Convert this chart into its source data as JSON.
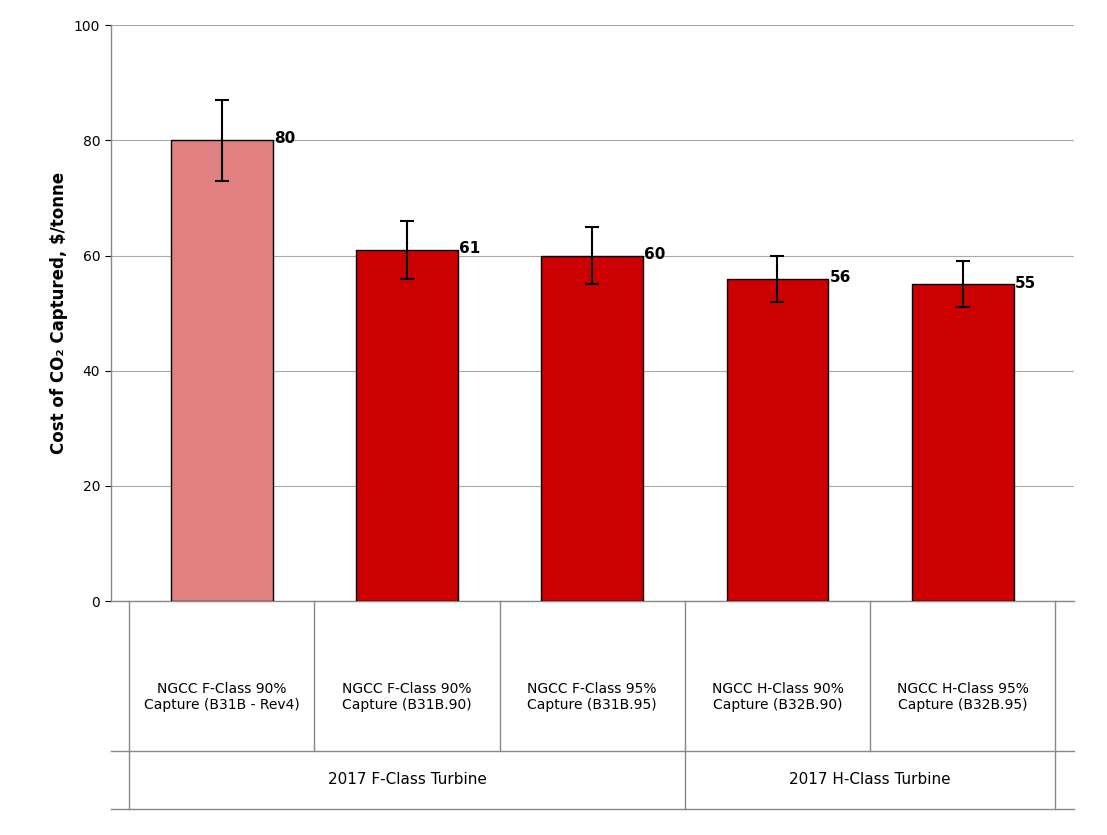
{
  "categories": [
    "NGCC F-Class 90%\nCapture (B31B - Rev4)",
    "NGCC F-Class 90%\nCapture (B31B.90)",
    "NGCC F-Class 95%\nCapture (B31B.95)",
    "NGCC H-Class 90%\nCapture (B32B.90)",
    "NGCC H-Class 95%\nCapture (B32B.95)"
  ],
  "values": [
    80,
    61,
    60,
    56,
    55
  ],
  "bar_colors": [
    "#E08080",
    "#CC0000",
    "#CC0000",
    "#CC0000",
    "#CC0000"
  ],
  "error_low": [
    7,
    5,
    5,
    4,
    4
  ],
  "error_high": [
    7,
    5,
    5,
    4,
    4
  ],
  "value_labels": [
    "80",
    "61",
    "60",
    "56",
    "55"
  ],
  "ylabel": "Cost of CO₂ Captured, $/tonne",
  "ylim": [
    0,
    100
  ],
  "yticks": [
    0,
    20,
    40,
    60,
    80,
    100
  ],
  "group_labels": [
    "2017 F-Class Turbine",
    "2017 H-Class Turbine"
  ],
  "fclass_bars": [
    0,
    1,
    2
  ],
  "hclass_bars": [
    3,
    4
  ],
  "bar_edge_color": "#000000",
  "bar_linewidth": 1.0,
  "error_color": "#000000",
  "error_linewidth": 1.5,
  "error_capsize": 5,
  "grid_color": "#AAAAAA",
  "background_color": "#FFFFFF",
  "value_label_fontsize": 11,
  "axis_label_fontsize": 12,
  "tick_label_fontsize": 10,
  "group_label_fontsize": 11
}
